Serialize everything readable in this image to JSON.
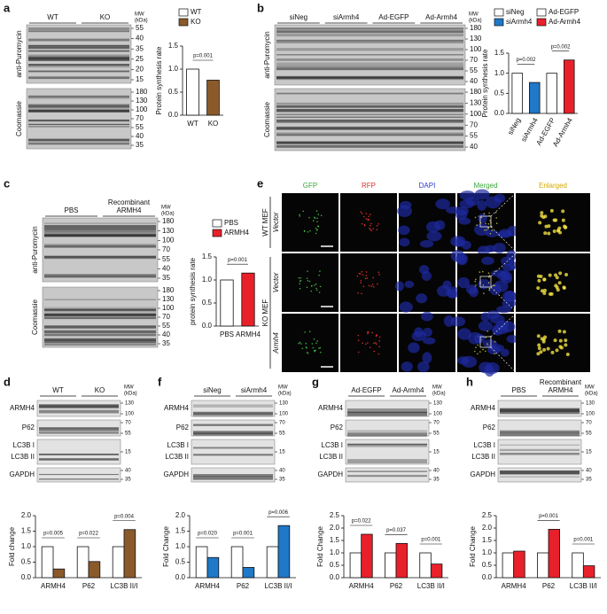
{
  "panels": {
    "a": {
      "label": "a",
      "lanes": [
        "WT",
        "KO"
      ],
      "mw": [
        "MW",
        "(kDa)"
      ],
      "blots": [
        {
          "name": "anti-Puromycin",
          "markers": [
            55,
            40,
            35,
            25,
            20,
            15
          ]
        },
        {
          "name": "Coomassie",
          "markers": [
            180,
            130,
            100,
            70,
            55,
            40,
            35
          ]
        }
      ]
    },
    "b": {
      "label": "b",
      "lanes": [
        "siNeg",
        "siArmh4",
        "Ad-EGFP",
        "Ad-Armh4"
      ],
      "mw": [
        "MW",
        "(kDa)"
      ],
      "blots": [
        {
          "name": "anti-Puromycin",
          "markers": [
            180,
            130,
            100,
            70,
            55,
            40
          ]
        },
        {
          "name": "Coomassie",
          "markers": [
            180,
            130,
            100,
            70,
            55,
            40
          ]
        }
      ]
    },
    "c": {
      "label": "c",
      "lanes": [
        "PBS",
        [
          "Recombinant",
          "ARMH4"
        ]
      ],
      "mw": [
        "MW",
        "(kDa)"
      ],
      "blots": [
        {
          "name": "anti-Puromycin",
          "markers": [
            180,
            130,
            100,
            70,
            55,
            40,
            35
          ]
        },
        {
          "name": "Coomassie",
          "markers": [
            180,
            130,
            100,
            70,
            55,
            40,
            35
          ]
        }
      ]
    },
    "d": {
      "label": "d",
      "lanes": [
        "WT",
        "KO"
      ],
      "mw": [
        "MW",
        "(kDa)"
      ],
      "rows": [
        {
          "names": [
            "ARMH4"
          ],
          "markers": [
            130,
            100
          ]
        },
        {
          "names": [
            "P62"
          ],
          "markers": [
            70,
            55
          ]
        },
        {
          "names": [
            "LC3B I",
            "LC3B II"
          ],
          "markers": [
            15
          ]
        },
        {
          "names": [
            "GAPDH"
          ],
          "markers": [
            40,
            35
          ]
        }
      ]
    },
    "f": {
      "label": "f",
      "lanes": [
        "siNeg",
        "siArmh4"
      ],
      "mw": [
        "MW",
        "(kDa)"
      ],
      "rows": [
        {
          "names": [
            "ARMH4"
          ],
          "markers": [
            130,
            100
          ]
        },
        {
          "names": [
            "P62"
          ],
          "markers": [
            70,
            55
          ]
        },
        {
          "names": [
            "LC3B I",
            "LC3B II"
          ],
          "markers": [
            15
          ]
        },
        {
          "names": [
            "GAPDH"
          ],
          "markers": [
            40,
            35
          ]
        }
      ]
    },
    "g": {
      "label": "g",
      "lanes": [
        "Ad-EGFP",
        "Ad-Armh4"
      ],
      "mw": [
        "MW",
        "(kDa)"
      ],
      "rows": [
        {
          "names": [
            "ARMH4"
          ],
          "markers": [
            130,
            100
          ]
        },
        {
          "names": [
            "P62"
          ],
          "markers": [
            70,
            55
          ]
        },
        {
          "names": [
            "LC3B I",
            "LC3B II"
          ],
          "markers": [
            15
          ]
        },
        {
          "names": [
            "GAPDH"
          ],
          "markers": [
            40,
            35
          ]
        }
      ]
    },
    "h": {
      "label": "h",
      "lanes": [
        "PBS",
        [
          "Recombinant",
          "ARMH4"
        ]
      ],
      "mw": [
        "MW",
        "(kDa)"
      ],
      "rows": [
        {
          "names": [
            "ARMH4"
          ],
          "markers": [
            130,
            100
          ]
        },
        {
          "names": [
            "P62"
          ],
          "markers": [
            70,
            55
          ]
        },
        {
          "names": [
            "LC3B I",
            "LC3B II"
          ],
          "markers": [
            15
          ]
        },
        {
          "names": [
            "GAPDH"
          ],
          "markers": [
            40,
            35
          ]
        }
      ]
    }
  },
  "imaging": {
    "label": "e",
    "columns": [
      "GFP",
      "RFP",
      "DAPI",
      "Merged",
      "Enlarged"
    ],
    "column_colors": [
      "#3aa63a",
      "#e0302a",
      "#2a3ad0",
      "#3aa63a",
      "#d4a800"
    ],
    "groups": [
      {
        "name": "WT MEF",
        "rows": [
          "Vector"
        ]
      },
      {
        "name": "KO MEF",
        "rows": [
          "Vector",
          "Armh4"
        ]
      }
    ]
  },
  "chart_data": [
    {
      "type": "bar",
      "categories": [
        "WT",
        "KO"
      ],
      "values": [
        1.0,
        0.76
      ],
      "colors": [
        "#ffffff",
        "#8b5a2b"
      ],
      "ylabel": "Protein synthesis rate",
      "ylim": [
        0,
        1.5
      ],
      "yticks": [
        {
          "value": 0,
          "label": "0.0"
        },
        {
          "value": 0.5,
          "label": "0.5"
        },
        {
          "value": 1,
          "label": "1.0"
        },
        {
          "value": 1.5,
          "label": "1.5"
        }
      ],
      "pvalues": [
        "p=0.001"
      ],
      "legend": "top"
    },
    {
      "type": "bar",
      "categories": [
        "siNeg",
        "siArmh4",
        "Ad-EGFP",
        "Ad-Armh4"
      ],
      "values": [
        1.0,
        0.77,
        1.0,
        1.33
      ],
      "colors": [
        "#ffffff",
        "#1f78c8",
        "#ffffff",
        "#e8202a"
      ],
      "ylabel": "Protein synthesis rate",
      "ylim": [
        0,
        1.5
      ],
      "yticks": [
        {
          "value": 0,
          "label": "0.0"
        },
        {
          "value": 0.5,
          "label": "0.5"
        },
        {
          "value": 1,
          "label": "1.0"
        },
        {
          "value": 1.5,
          "label": "1.5"
        }
      ],
      "pvalues": [
        "p=0.002",
        "p=0.002"
      ],
      "legend": "top"
    },
    {
      "type": "bar",
      "categories": [
        "PBS",
        "ARMH4"
      ],
      "values": [
        1.0,
        1.15
      ],
      "colors": [
        "#ffffff",
        "#e8202a"
      ],
      "ylabel": "protein synthesis rate",
      "ylim": [
        0,
        1.5
      ],
      "yticks": [
        {
          "value": 0,
          "label": "0.0"
        },
        {
          "value": 0.5,
          "label": "0.5"
        },
        {
          "value": 1,
          "label": "1.0"
        },
        {
          "value": 1.5,
          "label": "1.5"
        }
      ],
      "pvalues": [
        "p=0.001"
      ],
      "legend": "top"
    },
    {
      "type": "bar",
      "categories": [
        "ARMH4",
        "P62",
        "LC3B II/I"
      ],
      "series": [
        {
          "color": "#ffffff",
          "values": [
            1.0,
            1.0,
            1.0
          ]
        },
        {
          "color": "#8b5a2b",
          "values": [
            0.28,
            0.52,
            1.55
          ]
        }
      ],
      "ylabel": "Fold change",
      "ylim": [
        0,
        2
      ],
      "yticks": [
        {
          "value": 0,
          "label": "0.0"
        },
        {
          "value": 0.5,
          "label": "0.5"
        },
        {
          "value": 1,
          "label": "1.0"
        },
        {
          "value": 1.5,
          "label": "1.5"
        },
        {
          "value": 2,
          "label": "2.0"
        }
      ],
      "pvalues": [
        "p=0.005",
        "p=0.022",
        "p=0.004"
      ]
    },
    {
      "type": "bar",
      "categories": [
        "ARMH4",
        "P62",
        "LC3B II/I"
      ],
      "series": [
        {
          "color": "#ffffff",
          "values": [
            1.0,
            1.0,
            1.0
          ]
        },
        {
          "color": "#1f78c8",
          "values": [
            0.65,
            0.33,
            1.68
          ]
        }
      ],
      "ylabel": "Fold Change",
      "ylim": [
        0,
        2
      ],
      "yticks": [
        {
          "value": 0,
          "label": "0.0"
        },
        {
          "value": 0.5,
          "label": "0.5"
        },
        {
          "value": 1,
          "label": "1.0"
        },
        {
          "value": 1.5,
          "label": "1.5"
        },
        {
          "value": 2,
          "label": "2.0"
        }
      ],
      "pvalues": [
        "p=0.020",
        "p=0.001",
        "p=0.006"
      ]
    },
    {
      "type": "bar",
      "categories": [
        "ARMH4",
        "P62",
        "LC3B II/I"
      ],
      "series": [
        {
          "color": "#ffffff",
          "values": [
            1.0,
            1.0,
            1.0
          ]
        },
        {
          "color": "#e8202a",
          "values": [
            1.75,
            1.38,
            0.55
          ]
        }
      ],
      "ylabel": "Fold Change",
      "ylim": [
        0,
        2.5
      ],
      "yticks": [
        {
          "value": 0,
          "label": "0.0"
        },
        {
          "value": 0.5,
          "label": "0.5"
        },
        {
          "value": 1,
          "label": "1.0"
        },
        {
          "value": 1.5,
          "label": "1.5"
        },
        {
          "value": 2,
          "label": "2.0"
        },
        {
          "value": 2.5,
          "label": "2.5"
        }
      ],
      "pvalues": [
        "p=0.022",
        "p=0.037",
        "p=0.001"
      ]
    },
    {
      "type": "bar",
      "categories": [
        "ARMH4",
        "P62",
        "LC3B II/I"
      ],
      "series": [
        {
          "color": "#ffffff",
          "values": [
            1.0,
            1.0,
            1.0
          ]
        },
        {
          "color": "#e8202a",
          "values": [
            1.07,
            1.95,
            0.48
          ]
        }
      ],
      "ylabel": "Fold Change",
      "ylim": [
        0,
        2.5
      ],
      "yticks": [
        {
          "value": 0,
          "label": "0.0"
        },
        {
          "value": 0.5,
          "label": "0.5"
        },
        {
          "value": 1,
          "label": "1.0"
        },
        {
          "value": 1.5,
          "label": "1.5"
        },
        {
          "value": 2,
          "label": "2.0"
        },
        {
          "value": 2.5,
          "label": "2.5"
        }
      ],
      "pvalues": [
        null,
        "p=0.001",
        "p=0.001"
      ]
    }
  ]
}
